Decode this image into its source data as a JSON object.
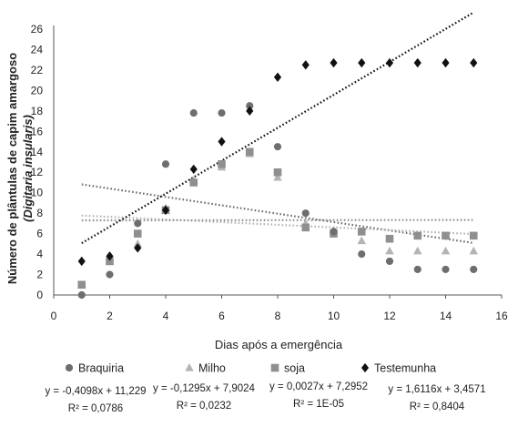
{
  "chart_data": {
    "type": "scatter",
    "xlabel": "Dias após a emergência",
    "ylabel_line1": "Número de plântulas de capim amargoso",
    "ylabel_line2": "(Digitaria insularis)",
    "xlim": [
      0,
      16
    ],
    "ylim": [
      0,
      26
    ],
    "xticks": [
      0,
      2,
      4,
      6,
      8,
      10,
      12,
      14,
      16
    ],
    "yticks": [
      0,
      2,
      4,
      6,
      8,
      10,
      12,
      14,
      16,
      18,
      20,
      22,
      24,
      26
    ],
    "grid": false,
    "legend_position": "bottom",
    "series": [
      {
        "name": "Braquiria",
        "marker": "circle",
        "color": "#6e6e6e",
        "x": [
          1,
          2,
          3,
          4,
          5,
          6,
          7,
          8,
          9,
          10,
          11,
          12,
          13,
          14,
          15
        ],
        "y": [
          0,
          2,
          7,
          12.8,
          17.8,
          17.8,
          18.5,
          14.5,
          8,
          6.2,
          4,
          3.3,
          2.5,
          2.5,
          2.5
        ],
        "trend": {
          "slope": -0.4098,
          "intercept": 11.229
        },
        "equation": "y = -0,4098x + 11,229",
        "r2": "R² = 0,0786"
      },
      {
        "name": "Milho",
        "marker": "triangle",
        "color": "#b4b4b4",
        "x": [
          1,
          2,
          3,
          4,
          5,
          6,
          7,
          8,
          9,
          10,
          11,
          12,
          13,
          14,
          15
        ],
        "y": [
          1,
          3.3,
          5,
          8.5,
          11.2,
          12.5,
          13.8,
          11.5,
          7,
          6.3,
          5.3,
          4.3,
          4.3,
          4.3,
          4.3
        ],
        "trend": {
          "slope": -0.1295,
          "intercept": 7.9024
        },
        "equation": "y = -0,1295x + 7,9024",
        "r2": "R² = 0,0232"
      },
      {
        "name": "soja",
        "marker": "square",
        "color": "#8f8f8f",
        "x": [
          1,
          2,
          3,
          4,
          5,
          6,
          7,
          8,
          9,
          10,
          11,
          12,
          13,
          14,
          15
        ],
        "y": [
          1,
          3.3,
          6,
          8.3,
          11,
          12.8,
          14,
          12,
          6.6,
          6,
          6.2,
          5.5,
          5.8,
          5.8,
          5.8
        ],
        "trend": {
          "slope": 0.0027,
          "intercept": 7.2952
        },
        "equation": "y = 0,0027x + 7,2952",
        "r2": "R² = 1E-05"
      },
      {
        "name": "Testemunha",
        "marker": "diamond",
        "color": "#111111",
        "x": [
          1,
          2,
          3,
          4,
          5,
          6,
          7,
          8,
          9,
          10,
          11,
          12,
          13,
          14,
          15
        ],
        "y": [
          3.3,
          3.8,
          4.6,
          8.3,
          12.3,
          15,
          18,
          21.3,
          22.5,
          22.7,
          22.7,
          22.7,
          22.7,
          22.7,
          22.7
        ],
        "trend": {
          "slope": 1.6116,
          "intercept": 3.4571
        },
        "equation": "y = 1,6116x + 3,4571",
        "r2": "R² = 0,8404"
      }
    ]
  }
}
